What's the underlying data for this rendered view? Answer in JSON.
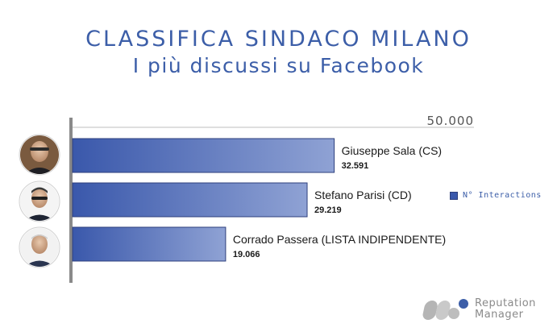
{
  "header": {
    "title": "CLASSIFICA SINDACO MILANO",
    "subtitle": "I più discussi su Facebook"
  },
  "chart_data": {
    "type": "bar",
    "orientation": "horizontal",
    "categories": [
      "Giuseppe Sala (CS)",
      "Stefano Parisi (CD)",
      "Corrado Passera (LISTA INDIPENDENTE)"
    ],
    "values": [
      32591,
      29219,
      19066
    ],
    "value_labels": [
      "32.591",
      "29.219",
      "19.066"
    ],
    "series": [
      {
        "name": "N° Interactions",
        "values": [
          32591,
          29219,
          19066
        ]
      }
    ],
    "xlim": [
      0,
      50000
    ],
    "axis_max_label": "50.000",
    "legend_position": "right",
    "grid": false,
    "bar_color_start": "#3a58ab",
    "bar_color_end": "#8fa2d4"
  },
  "legend": {
    "label": "N° Interactions"
  },
  "logo": {
    "line1": "Reputation",
    "line2": "Manager"
  }
}
